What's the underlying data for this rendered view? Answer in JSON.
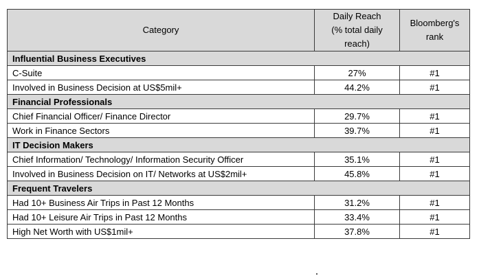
{
  "header": {
    "category": "Category",
    "daily_reach": [
      "Daily Reach",
      "(% total daily",
      "reach)"
    ],
    "rank": [
      "Bloomberg's",
      "rank"
    ]
  },
  "sections": [
    {
      "title": "Influential Business Executives",
      "rows": [
        {
          "category": "C-Suite",
          "reach": "27%",
          "rank": "#1"
        },
        {
          "category": "Involved in Business Decision at US$5mil+",
          "reach": "44.2%",
          "rank": "#1"
        }
      ]
    },
    {
      "title": "Financial Professionals",
      "rows": [
        {
          "category": "Chief Financial Officer/ Finance Director",
          "reach": "29.7%",
          "rank": "#1"
        },
        {
          "category": "Work in Finance Sectors",
          "reach": "39.7%",
          "rank": "#1"
        }
      ]
    },
    {
      "title": "IT Decision Makers",
      "rows": [
        {
          "category": "Chief Information/ Technology/ Information Security Officer",
          "reach": "35.1%",
          "rank": "#1"
        },
        {
          "category": "Involved in Business Decision on IT/ Networks at US$2mil+",
          "reach": "45.8%",
          "rank": "#1"
        }
      ]
    },
    {
      "title": "Frequent Travelers",
      "rows": [
        {
          "category": "Had 10+ Business Air Trips in Past 12 Months",
          "reach": "31.2%",
          "rank": "#1"
        },
        {
          "category": "Had 10+ Leisure Air Trips in Past 12 Months",
          "reach": "33.4%",
          "rank": "#1"
        },
        {
          "category": "High Net Worth with US$1mil+",
          "reach": "37.8%",
          "rank": "#1"
        }
      ]
    }
  ]
}
